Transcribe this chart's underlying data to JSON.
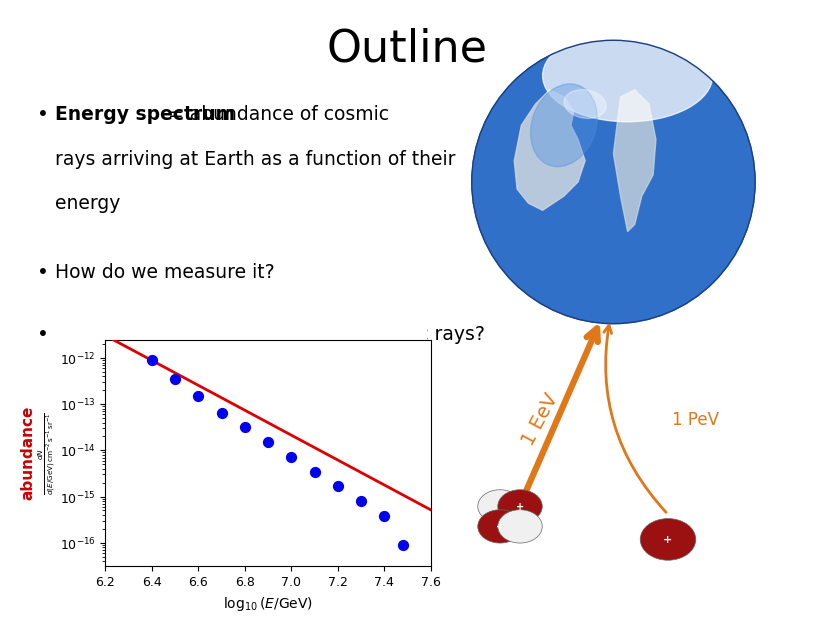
{
  "title": "Outline",
  "title_fontsize": 32,
  "bg_color": "#ffffff",
  "bullet1_bold": "Energy spectrum",
  "bullet1_normal": " = abundance of cosmic rays arriving at Earth as a function of their energy",
  "bullet2": "How do we measure it?",
  "bullet3": "What do we learn from counting cosmic rays?",
  "bullet_fontsize": 13.5,
  "abundance_label": "abundance",
  "abundance_color": "#cc0000",
  "arrow_color": "#e07818",
  "scatter_x": [
    6.4,
    6.5,
    6.6,
    6.7,
    6.8,
    6.9,
    7.0,
    7.1,
    7.2,
    7.3,
    7.4,
    7.48
  ],
  "scatter_y_log": [
    -12.05,
    -12.45,
    -12.82,
    -13.18,
    -13.5,
    -13.82,
    -14.14,
    -14.46,
    -14.78,
    -15.1,
    -15.42,
    -16.05
  ],
  "scatter_color": "#0000ee",
  "scatter_size": 50,
  "red_line_color": "#dd0000",
  "xlabel": "$\\log_{10}(E/\\mathrm{GeV})$",
  "xticks": [
    6.2,
    6.4,
    6.6,
    6.8,
    7.0,
    7.2,
    7.4,
    7.6
  ],
  "ytick_labels": [
    "$10^{-16}$",
    "$10^{-15}$",
    "$10^{-14}$",
    "$10^{-13}$",
    "$10^{-12}$"
  ],
  "globe_ocean": "#3070c8",
  "globe_land": "#e8e8e8",
  "dark_red": "#9b1010",
  "white": "#f0f0f0"
}
